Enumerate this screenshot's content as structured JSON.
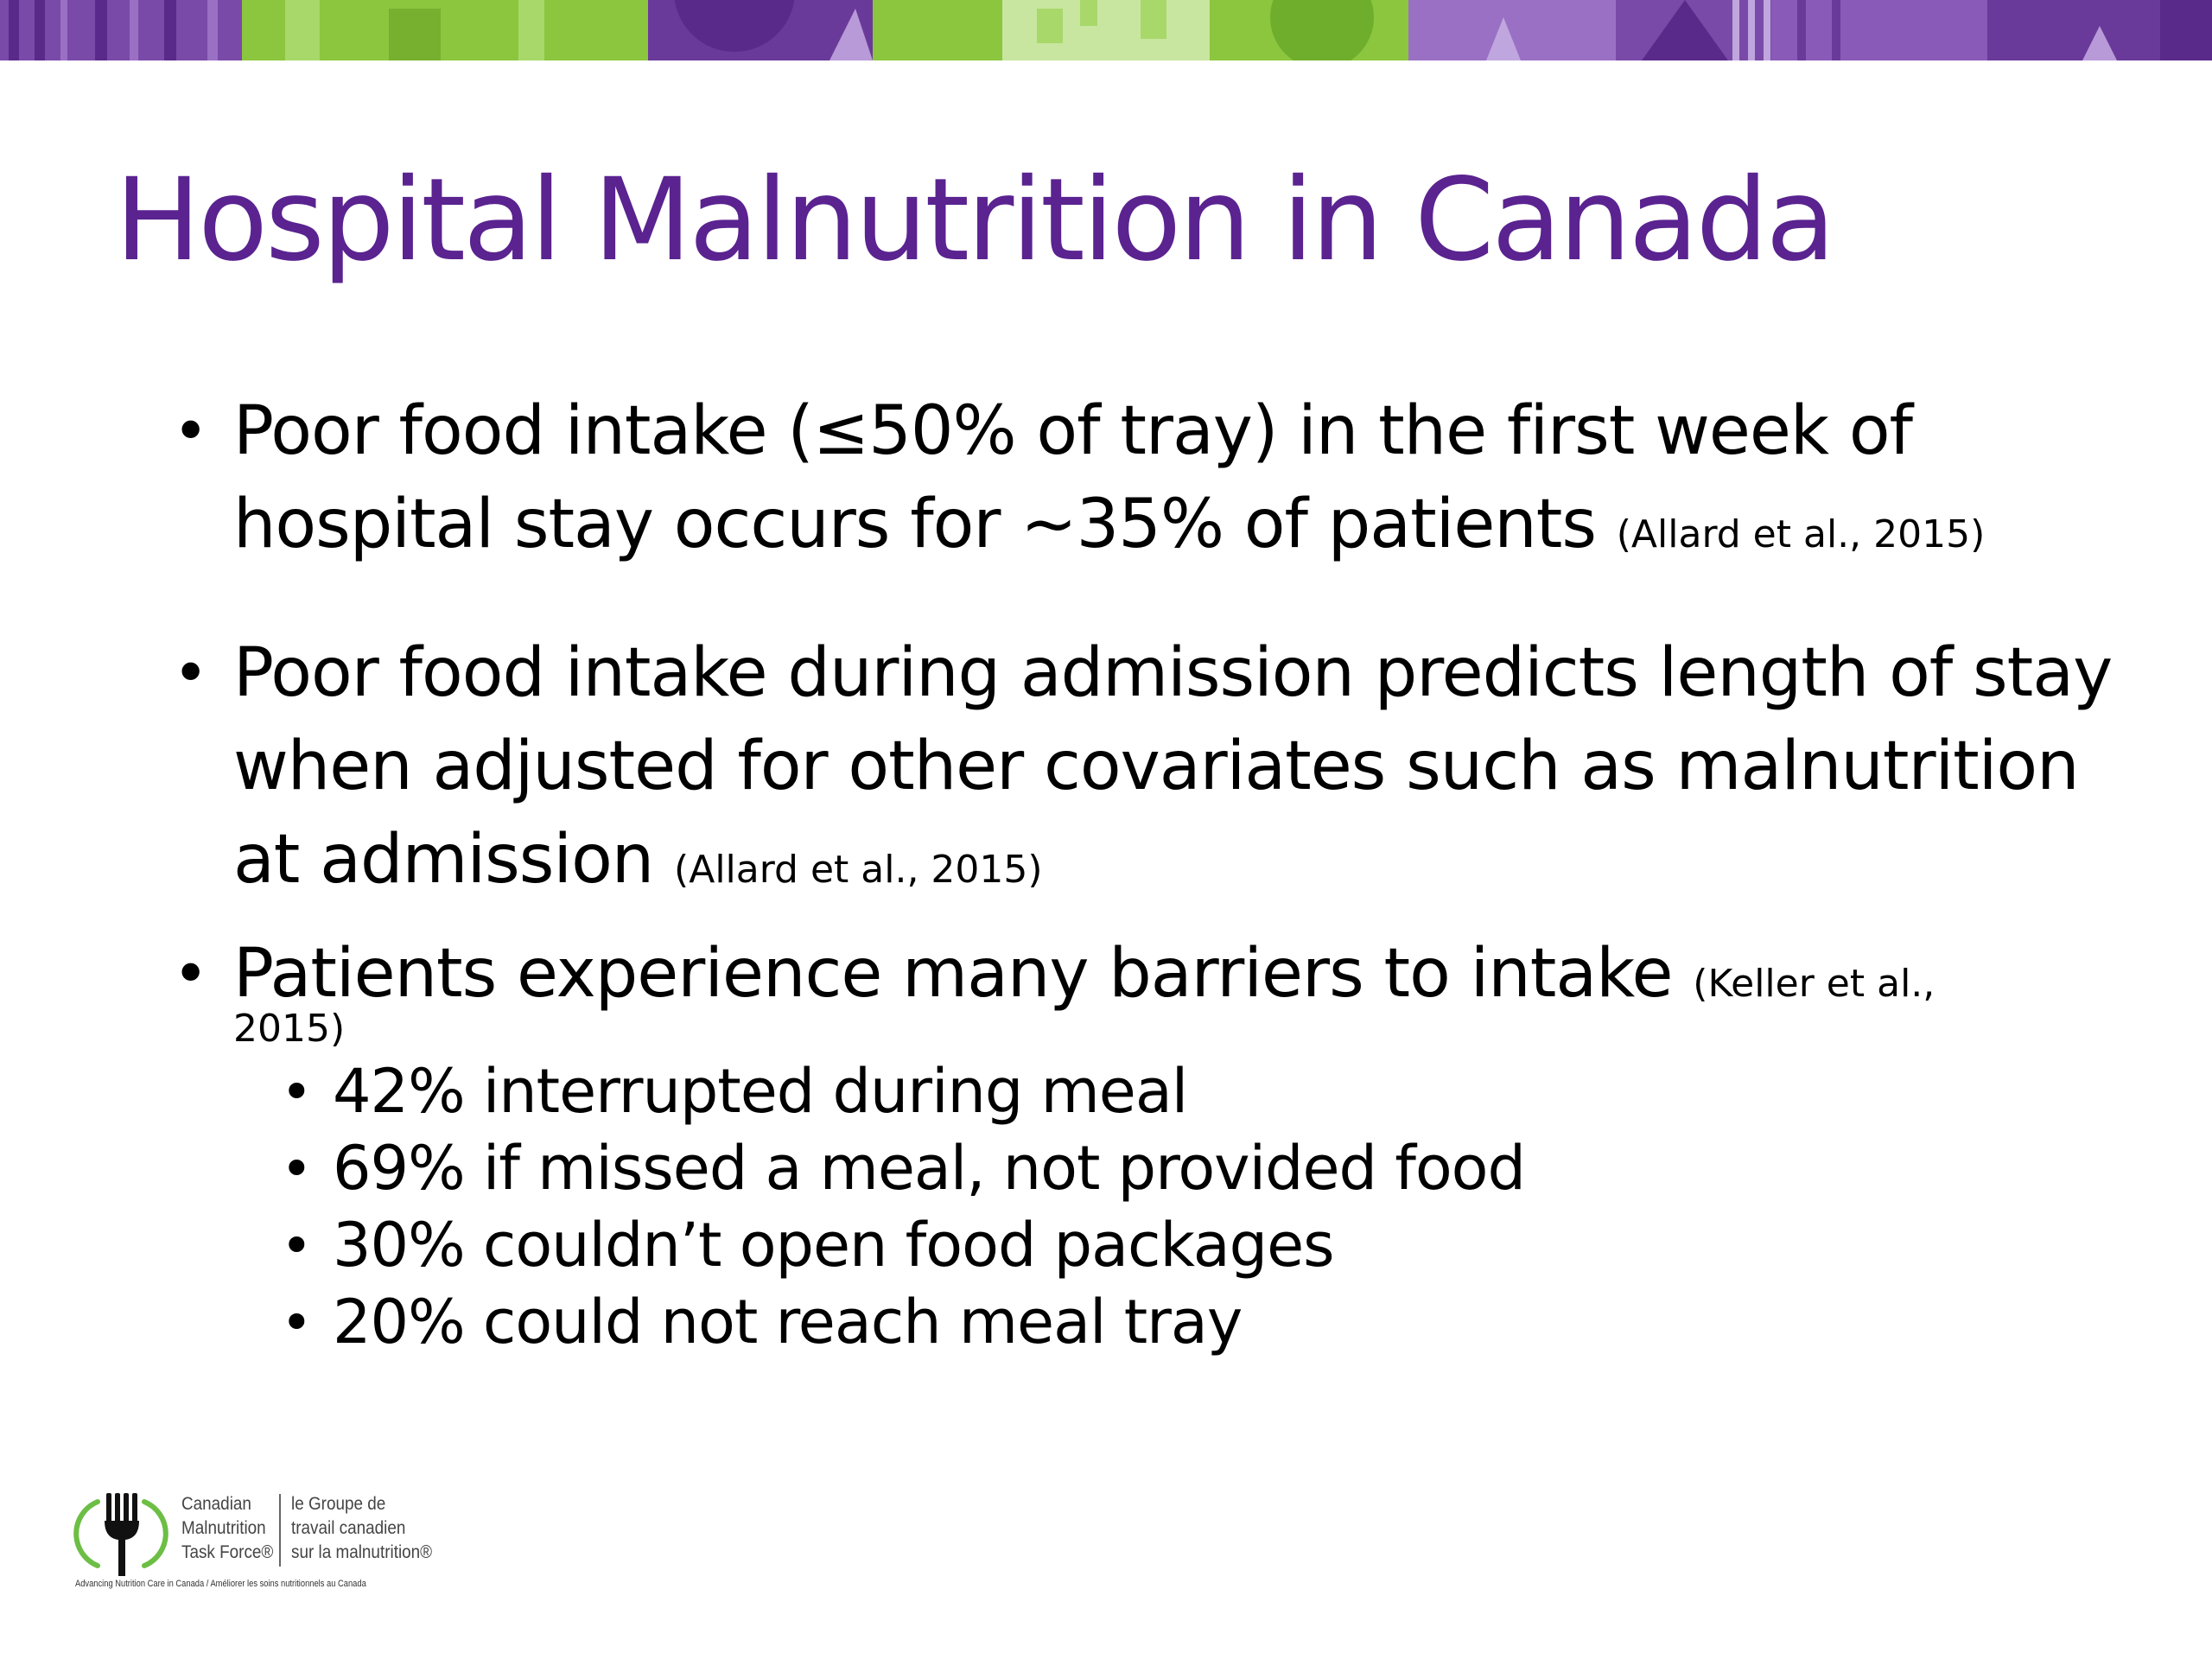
{
  "slide": {
    "title": "Hospital Malnutrition in Canada",
    "bullets": [
      {
        "text": "Poor food intake (≤50% of tray) in the first week of hospital stay occurs for ~35% of patients",
        "citation": "(Allard et al., 2015)"
      },
      {
        "text": "Poor food intake during admission predicts length of stay when adjusted for other covariates such as malnutrition at admission",
        "citation": "(Allard et al., 2015)"
      },
      {
        "text": "Patients experience many barriers to intake",
        "citation_part1": "(Keller et al.,",
        "citation_part2": "2015)",
        "sub_bullets": [
          "42% interrupted during meal",
          "69% if missed a meal, not provided food",
          "30% couldn’t open food packages",
          "20% could not reach meal tray"
        ]
      }
    ]
  },
  "logo": {
    "name_en": "Canadian\nMalnutrition\nTask Force®",
    "name_fr": "le Groupe de\ntravail canadien\nsur la malnutrition®",
    "tagline": "Advancing Nutrition Care in Canada / Améliorer les soins nutritionnels au Canada",
    "icon": "fork-icon"
  },
  "colors": {
    "title": "#5a2390",
    "banner_purple": "#6a3a9a",
    "banner_green": "#8cc63f",
    "logo_green": "#6cbe45"
  }
}
